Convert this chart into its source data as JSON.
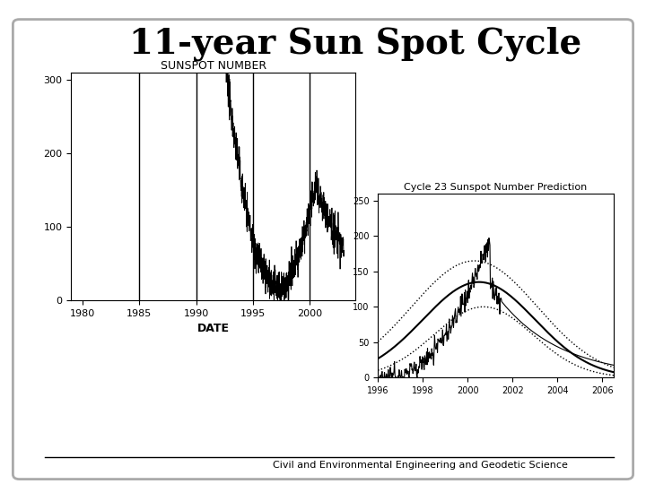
{
  "title": "11-year Sun Spot Cycle",
  "title_fontsize": 28,
  "subtitle_bottom": "Civil and Environmental Engineering and Geodetic Science",
  "background_color": "#ffffff",
  "left_chart": {
    "title": "SUNSPOT NUMBER",
    "xlabel": "DATE",
    "xlim": [
      1979,
      2004
    ],
    "ylim": [
      0,
      310
    ],
    "yticks": [
      0,
      100,
      200,
      300
    ],
    "xticks": [
      1980,
      1985,
      1990,
      1995,
      2000
    ],
    "vlines": [
      1985,
      1990,
      1995,
      2000
    ],
    "title_fontsize": 9,
    "label_fontsize": 9,
    "tick_fontsize": 8
  },
  "right_chart": {
    "title": "Cycle 23 Sunspot Number Prediction",
    "xlim": [
      1996,
      2006.5
    ],
    "ylim": [
      0,
      260
    ],
    "yticks": [
      0,
      50,
      100,
      150,
      200,
      250
    ],
    "xticks": [
      1996,
      1998,
      2000,
      2002,
      2004,
      2006
    ],
    "title_fontsize": 8,
    "tick_fontsize": 7
  },
  "osu_red": "#bb0000"
}
